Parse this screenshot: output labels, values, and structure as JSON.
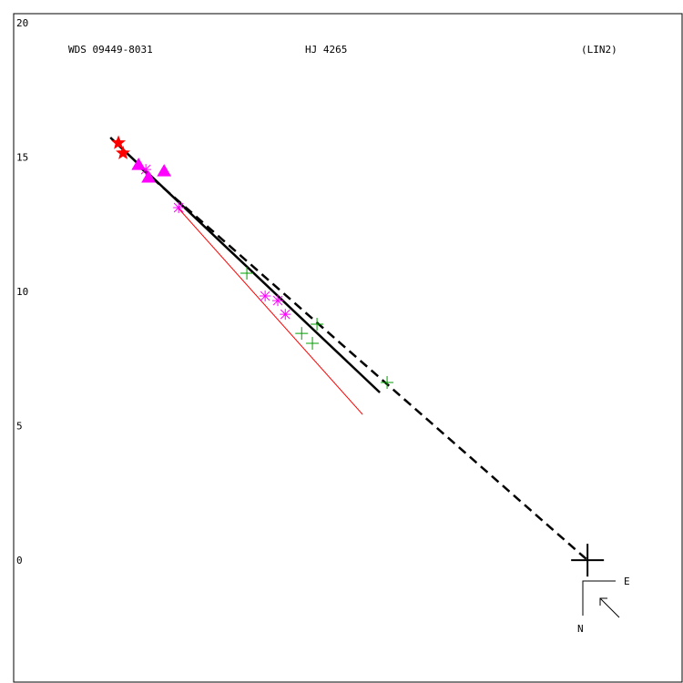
{
  "chart_data": {
    "type": "scatter",
    "wds_id": "WDS 09449-8031",
    "title": "HJ 4265",
    "reference": "(LIN2)",
    "compass": {
      "east": "E",
      "north": "N"
    },
    "xlim": [
      -21.36,
      3.52
    ],
    "ylim": [
      -4.54,
      20.34
    ],
    "yticks": [
      0,
      5,
      10,
      15,
      20
    ],
    "series": [
      {
        "marker": "star",
        "color": "#ff0000",
        "x": [
          -17.46,
          -17.29
        ],
        "values": [
          15.53,
          15.15
        ]
      },
      {
        "marker": "triangle",
        "color": "#ff00ff",
        "x": [
          -16.71,
          -15.76,
          -16.34
        ],
        "values": [
          14.71,
          14.47,
          14.24
        ]
      },
      {
        "marker": "asterisk",
        "color": "#ff00ff",
        "x": [
          -16.44,
          -15.22,
          -12.0,
          -11.53,
          -11.25
        ],
        "values": [
          14.54,
          13.12,
          9.83,
          9.66,
          9.15
        ]
      },
      {
        "marker": "plus",
        "color": "#00a000",
        "x": [
          -12.68,
          -10.64,
          -10.07,
          -10.24,
          -7.46
        ],
        "values": [
          10.68,
          8.44,
          8.78,
          8.07,
          6.61
        ]
      },
      {
        "marker": "cross",
        "color": "#000000",
        "x": [
          0
        ],
        "values": [
          0
        ]
      }
    ],
    "lines": [
      {
        "color": "#ff0000",
        "width": 1,
        "dashed": false,
        "x": [
          -15.25,
          -8.37
        ],
        "values": [
          13.12,
          5.42
        ]
      },
      {
        "color": "#000000",
        "width": 2.5,
        "dashed": false,
        "x": [
          -17.76,
          -7.73
        ],
        "values": [
          15.73,
          6.24
        ]
      },
      {
        "color": "#000000",
        "width": 2.5,
        "dashed": true,
        "x": [
          -16.61,
          0
        ],
        "values": [
          14.58,
          0
        ]
      }
    ]
  }
}
